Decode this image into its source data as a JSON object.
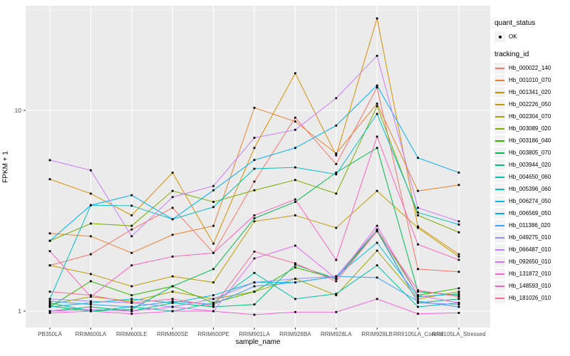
{
  "chart_data": {
    "type": "line",
    "title": "",
    "xlabel": "sample_name",
    "ylabel": "FPKM + 1",
    "y_scale": "log10",
    "ylim": [
      0.83,
      33.5
    ],
    "y_ticks": [
      {
        "label": "1",
        "value": 1
      },
      {
        "label": "10",
        "value": 10
      }
    ],
    "y_minor_gridlines": [
      3.162,
      31.62
    ],
    "grid": true,
    "panel_background": "#EBEBEB",
    "gridline_color": "#FFFFFF",
    "point_shape": "small-black-square",
    "legend_position": "right",
    "x_categories": [
      "PB350LA",
      "RRIM600LA",
      "RRIM600LE",
      "RRIM600SE",
      "RRIM600PE",
      "RRIM901LA",
      "RRIM928BA",
      "RRIM928LA",
      "RRIM928LB",
      "RRII105LA_Control",
      "RRII105LA_Stressed"
    ],
    "series": [
      {
        "name": "Hb_000022_140",
        "color": "#F8766D",
        "values": [
          1.69,
          1.92,
          2.55,
          3.27,
          1.95,
          4.42,
          9.2,
          5.4,
          13.0,
          1.62,
          1.57
        ]
      },
      {
        "name": "Hb_001010_070",
        "color": "#EA8331",
        "values": [
          2.44,
          2.36,
          1.95,
          2.4,
          2.66,
          10.3,
          8.8,
          6.1,
          10.8,
          3.97,
          4.25
        ]
      },
      {
        "name": "Hb_001341_020",
        "color": "#D89000",
        "values": [
          4.54,
          3.85,
          3.0,
          4.89,
          2.17,
          6.5,
          15.3,
          5.97,
          28.7,
          2.64,
          1.92
        ]
      },
      {
        "name": "Hb_002226_050",
        "color": "#C09B00",
        "values": [
          1.69,
          1.53,
          1.33,
          1.49,
          1.39,
          2.8,
          3.0,
          2.6,
          3.97,
          2.6,
          1.87
        ]
      },
      {
        "name": "Hb_002304_070",
        "color": "#A3A500",
        "values": [
          1.08,
          1.18,
          1.12,
          1.25,
          1.15,
          1.25,
          1.45,
          1.2,
          2.0,
          1.15,
          1.25
        ]
      },
      {
        "name": "Hb_003089_020",
        "color": "#7CAE00",
        "values": [
          2.24,
          2.73,
          2.66,
          3.97,
          3.5,
          4.0,
          4.5,
          3.85,
          10.5,
          3.0,
          2.47
        ]
      },
      {
        "name": "Hb_003186_040",
        "color": "#39B600",
        "values": [
          1.05,
          1.41,
          1.2,
          1.33,
          1.1,
          1.25,
          1.65,
          1.45,
          2.55,
          1.2,
          1.3
        ]
      },
      {
        "name": "Hb_003805_070",
        "color": "#00BB4E",
        "values": [
          1.06,
          1.0,
          1.02,
          1.33,
          1.62,
          2.9,
          3.5,
          4.9,
          6.5,
          1.25,
          1.2
        ]
      },
      {
        "name": "Hb_003944_020",
        "color": "#00BF7D",
        "values": [
          1.0,
          1.05,
          1.0,
          1.1,
          1.05,
          1.08,
          1.7,
          1.45,
          2.5,
          1.1,
          1.15
        ]
      },
      {
        "name": "Hb_004650_060",
        "color": "#00C1A3",
        "values": [
          1.1,
          1.0,
          1.05,
          1.0,
          1.1,
          1.55,
          1.15,
          1.22,
          1.69,
          1.05,
          1.1
        ]
      },
      {
        "name": "Hb_005396_060",
        "color": "#00BFC4",
        "values": [
          1.15,
          3.37,
          3.35,
          2.87,
          3.3,
          5.12,
          5.2,
          4.8,
          9.6,
          3.1,
          2.7
        ]
      },
      {
        "name": "Hb_006274_050",
        "color": "#00BAE0",
        "values": [
          1.05,
          1.1,
          1.15,
          1.1,
          1.2,
          1.39,
          1.39,
          1.49,
          2.19,
          1.18,
          1.22
        ]
      },
      {
        "name": "Hb_006569_050",
        "color": "#00B0F6",
        "values": [
          2.24,
          3.37,
          3.78,
          2.87,
          4.0,
          5.66,
          6.5,
          8.4,
          13.3,
          5.8,
          4.9
        ]
      },
      {
        "name": "Hb_011386_020",
        "color": "#35A2FF",
        "values": [
          1.12,
          1.08,
          1.05,
          1.12,
          1.08,
          1.33,
          1.39,
          1.49,
          1.47,
          1.12,
          1.05
        ]
      },
      {
        "name": "Hb_049275_010",
        "color": "#9590FF",
        "values": [
          1.15,
          1.12,
          1.1,
          1.05,
          1.15,
          1.39,
          1.45,
          1.49,
          2.55,
          1.1,
          1.08
        ]
      },
      {
        "name": "Hb_066487_010",
        "color": "#C77CFF",
        "values": [
          5.65,
          5.03,
          2.36,
          3.7,
          4.2,
          7.3,
          8.0,
          11.5,
          18.7,
          3.27,
          2.8
        ]
      },
      {
        "name": "Hb_092650_010",
        "color": "#E76BF3",
        "values": [
          1.0,
          1.02,
          1.0,
          1.05,
          1.0,
          1.83,
          2.12,
          1.45,
          2.66,
          1.2,
          1.1
        ]
      },
      {
        "name": "Hb_131872_010",
        "color": "#FA62DB",
        "values": [
          0.98,
          1.0,
          0.97,
          1.0,
          1.0,
          0.96,
          0.99,
          0.99,
          1.15,
          0.97,
          0.98
        ]
      },
      {
        "name": "Hb_148593_010",
        "color": "#FF62BC",
        "values": [
          1.99,
          1.18,
          1.69,
          1.87,
          1.95,
          3.0,
          3.6,
          1.8,
          7.4,
          2.15,
          1.8
        ]
      },
      {
        "name": "Hb_181026_010",
        "color": "#FF6A98",
        "values": [
          1.25,
          1.2,
          1.1,
          1.15,
          1.06,
          1.98,
          1.73,
          1.41,
          2.5,
          1.27,
          1.18
        ]
      }
    ]
  },
  "legend": {
    "quant_status": {
      "title": "quant_status",
      "items": [
        {
          "label": "OK"
        }
      ]
    },
    "tracking_id": {
      "title": "tracking_id"
    }
  },
  "axes": {
    "y_title": "FPKM + 1",
    "x_title": "sample_name"
  },
  "colors": {
    "panel_background": "#EBEBEB",
    "gridline": "#FFFFFF",
    "tick_text": "#4D4D4D",
    "tick_mark": "#333333",
    "point": "#000000",
    "legend_key_background": "#F2F2F2"
  }
}
